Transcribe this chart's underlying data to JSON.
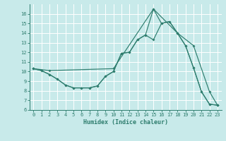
{
  "xlabel": "Humidex (Indice chaleur)",
  "bg_color": "#c8eaea",
  "grid_color": "#ffffff",
  "line_color": "#2e7d6e",
  "xlim": [
    -0.5,
    23.5
  ],
  "ylim": [
    6,
    17.0
  ],
  "xticks": [
    0,
    1,
    2,
    3,
    4,
    5,
    6,
    7,
    8,
    9,
    10,
    11,
    12,
    13,
    14,
    15,
    16,
    17,
    18,
    19,
    20,
    21,
    22,
    23
  ],
  "yticks": [
    6,
    7,
    8,
    9,
    10,
    11,
    12,
    13,
    14,
    15,
    16
  ],
  "line1_x": [
    0,
    1,
    2,
    3,
    4,
    5,
    6,
    7,
    8,
    9,
    10,
    11,
    12,
    13,
    14,
    15,
    16,
    17,
    18,
    19,
    20,
    21,
    22,
    23
  ],
  "line1_y": [
    10.3,
    10.1,
    9.7,
    9.2,
    8.6,
    8.3,
    8.3,
    8.3,
    8.5,
    9.5,
    10.0,
    11.9,
    12.0,
    13.3,
    13.8,
    16.5,
    15.0,
    15.2,
    14.0,
    12.7,
    10.4,
    7.9,
    6.6,
    6.5
  ],
  "line2_x": [
    0,
    1,
    2,
    3,
    4,
    5,
    6,
    7,
    8,
    9,
    10,
    11,
    12,
    13,
    14,
    15,
    16,
    17,
    18,
    19,
    20,
    21,
    22,
    23
  ],
  "line2_y": [
    10.3,
    10.1,
    9.7,
    9.2,
    8.6,
    8.3,
    8.3,
    8.3,
    8.5,
    9.5,
    10.0,
    11.9,
    12.0,
    13.3,
    13.8,
    13.3,
    15.0,
    15.2,
    14.0,
    12.7,
    10.4,
    7.9,
    6.6,
    6.5
  ],
  "line3_x": [
    0,
    2,
    10,
    15,
    18,
    20,
    22,
    23
  ],
  "line3_y": [
    10.3,
    10.1,
    10.3,
    16.5,
    14.0,
    12.7,
    7.9,
    6.5
  ]
}
